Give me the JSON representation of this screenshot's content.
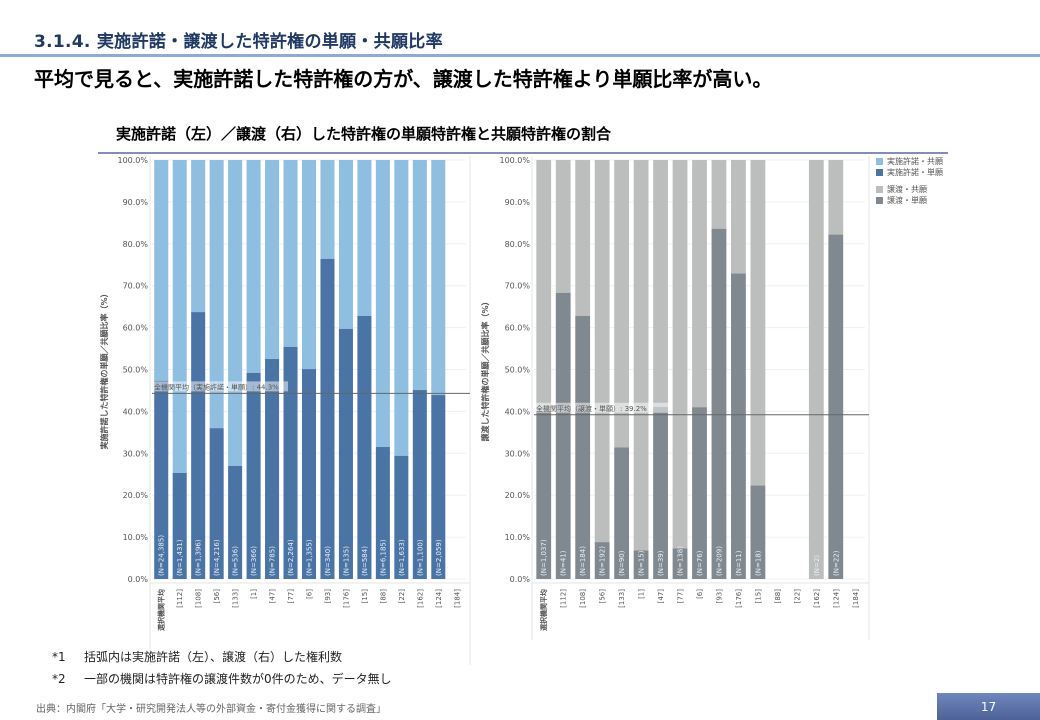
{
  "slide": {
    "section_title": "3.1.4. 実施許諾・譲渡した特許権の単願・共願比率",
    "headline": "平均で見ると、実施許諾した特許権の方が、譲渡した特許権より単願比率が高い。",
    "chart_title": "実施許諾（左）／譲渡（右）した特許権の単願特許権と共願特許権の割合",
    "notes": [
      {
        "label": "*1",
        "text": "括弧内は実施許諾（左）、譲渡（右）した権利数"
      },
      {
        "label": "*2",
        "text": "一部の機関は特許権の譲渡件数が0件のため、データ無し"
      }
    ],
    "source": "出典：内閣府「大学・研究開発法人等の外部資金・寄付金獲得に関する調査」",
    "page_number": "17"
  },
  "legend": [
    {
      "label": "実施許諾・共願",
      "color": "#8fbfe0"
    },
    {
      "label": "実施許諾・単願",
      "color": "#4a74a5"
    },
    {
      "label": "譲渡・共願",
      "color": "#bcbebe"
    },
    {
      "label": "譲渡・単願",
      "color": "#808890"
    }
  ],
  "chart_data": [
    {
      "type": "bar",
      "stacked": true,
      "title": "実施許諾（左）",
      "ylabel": "実施許諾した特許権の単願／共願比率（%）",
      "ylim": [
        0,
        100
      ],
      "yticks": [
        "0.0%",
        "10.0%",
        "20.0%",
        "30.0%",
        "40.0%",
        "50.0%",
        "60.0%",
        "70.0%",
        "80.0%",
        "90.0%",
        "100.0%"
      ],
      "categories": [
        "選択機関平均",
        "[112]",
        "[108]",
        "[56]",
        "[133]",
        "[1]",
        "[47]",
        "[77]",
        "[6]",
        "[93]",
        "[176]",
        "[15]",
        "[88]",
        "[22]",
        "[162]",
        "[124]",
        "[184]"
      ],
      "n_labels": [
        "(N=24,385)",
        "(N=1,431)",
        "(N=1,396)",
        "(N=4,216)",
        "(N=536)",
        "(N=366)",
        "(N=785)",
        "(N=2,264)",
        "(N=1,355)",
        "(N=340)",
        "(N=135)",
        "(N=584)",
        "(N=6,185)",
        "(N=1,633)",
        "(N=1,100)",
        "(N=2,059)",
        ""
      ],
      "series": [
        {
          "name": "実施許諾・単願",
          "color": "#4a74a5",
          "values": [
            47.3,
            25.3,
            63.7,
            36.0,
            27.0,
            49.2,
            52.5,
            55.4,
            50.1,
            76.4,
            59.7,
            62.8,
            31.5,
            29.4,
            45.1,
            43.9,
            null
          ]
        },
        {
          "name": "実施許諾・共願",
          "color": "#8fbfe0",
          "values": [
            52.7,
            74.7,
            36.3,
            64.0,
            73.0,
            50.8,
            47.5,
            44.6,
            49.9,
            23.6,
            40.3,
            37.2,
            68.5,
            70.6,
            54.9,
            56.1,
            null
          ]
        }
      ],
      "reference_line": {
        "label": "全機関平均（実施許諾・単願）: 44.3%",
        "value": 44.3
      },
      "highlight_category_color": "#e0393e"
    },
    {
      "type": "bar",
      "stacked": true,
      "title": "譲渡（右）",
      "ylabel": "譲渡した特許権の単願／共願比率（%）",
      "ylim": [
        0,
        100
      ],
      "yticks": [
        "0.0%",
        "10.0%",
        "20.0%",
        "30.0%",
        "40.0%",
        "50.0%",
        "60.0%",
        "70.0%",
        "80.0%",
        "90.0%",
        "100.0%"
      ],
      "categories": [
        "選択機関平均",
        "[112]",
        "[108]",
        "[56]",
        "[133]",
        "[1]",
        "[47]",
        "[77]",
        "[6]",
        "[93]",
        "[176]",
        "[15]",
        "[88]",
        "[22]",
        "[162]",
        "[124]",
        "[184]"
      ],
      "n_labels": [
        "(N=1,037)",
        "(N=41)",
        "(N=184)",
        "(N=192)",
        "(N=90)",
        "(N=15)",
        "(N=39)",
        "(N=138)",
        "(N=76)",
        "(N=209)",
        "(N=11)",
        "(N=18)",
        "",
        "",
        "(N=2)",
        "(N=22)",
        ""
      ],
      "series": [
        {
          "name": "譲渡・単願",
          "color": "#808890",
          "values": [
            40.1,
            68.3,
            62.8,
            8.8,
            31.4,
            6.8,
            41.1,
            7.3,
            41.0,
            83.6,
            72.9,
            22.3,
            null,
            null,
            0,
            82.2,
            null
          ]
        },
        {
          "name": "譲渡・共願",
          "color": "#bcbebe",
          "values": [
            59.9,
            31.7,
            37.2,
            91.2,
            68.6,
            93.2,
            58.9,
            92.7,
            59.0,
            16.4,
            27.1,
            77.7,
            null,
            null,
            100,
            17.8,
            null
          ]
        }
      ],
      "reference_line": {
        "label": "全機関平均（譲渡・単願）: 39.2%",
        "value": 39.2
      },
      "highlight_category_color": "#e0393e"
    }
  ]
}
